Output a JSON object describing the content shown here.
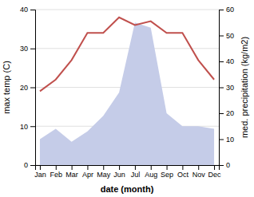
{
  "chart_data": {
    "type": "line",
    "categories": [
      "Jan",
      "Feb",
      "Mar",
      "Apr",
      "May",
      "Jun",
      "Jul",
      "Aug",
      "Sep",
      "Oct",
      "Nov",
      "Dec"
    ],
    "xlabel": "date (month)",
    "ylabel": "max temp (C)",
    "y2label": "med. precipitation (kg/m2)",
    "series": [
      {
        "type": "area",
        "axis": "y2",
        "color": "#c5cce8",
        "values": [
          10,
          14,
          9,
          13,
          19,
          28,
          55,
          53,
          20,
          15,
          15,
          14
        ]
      },
      {
        "type": "line",
        "color": "#c0504d",
        "values": [
          19,
          22,
          27,
          34,
          34,
          38,
          36,
          37,
          34,
          34,
          27,
          22
        ]
      }
    ],
    "ylim": [
      0,
      40
    ],
    "yticks": [
      0,
      10,
      20,
      30,
      40
    ],
    "y2lim": [
      0,
      60
    ],
    "y2ticks": [
      0,
      10,
      20,
      30,
      40,
      50,
      60
    ],
    "grid": true
  }
}
